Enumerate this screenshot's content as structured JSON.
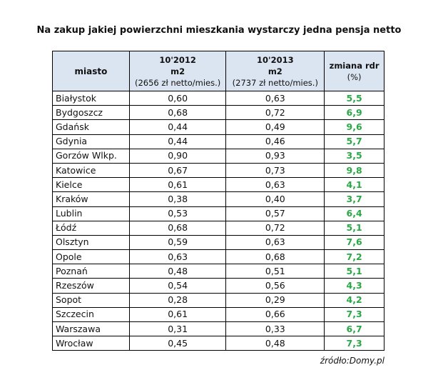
{
  "title": "Na zakup jakiej powierzchni mieszkania wystarczy jedna pensja netto",
  "header": {
    "city": "miasto",
    "y2012": {
      "line1": "10'2012",
      "line2": "m2",
      "line3": "(2656 zł netto/mies.)"
    },
    "y2013": {
      "line1": "10'2013",
      "line2": "m2",
      "line3": "(2737 zł netto/mies.)"
    },
    "change": {
      "line1": "zmiana rdr",
      "line2": "(%)"
    }
  },
  "rows": [
    {
      "city": "Białystok",
      "y2012": "0,60",
      "y2013": "0,63",
      "change": "5,5"
    },
    {
      "city": "Bydgoszcz",
      "y2012": "0,68",
      "y2013": "0,72",
      "change": "6,9"
    },
    {
      "city": "Gdańsk",
      "y2012": "0,44",
      "y2013": "0,49",
      "change": "9,6"
    },
    {
      "city": "Gdynia",
      "y2012": "0,44",
      "y2013": "0,46",
      "change": "5,7"
    },
    {
      "city": "Gorzów Wlkp.",
      "y2012": "0,90",
      "y2013": "0,93",
      "change": "3,5"
    },
    {
      "city": "Katowice",
      "y2012": "0,67",
      "y2013": "0,73",
      "change": "9,8"
    },
    {
      "city": "Kielce",
      "y2012": "0,61",
      "y2013": "0,63",
      "change": "4,1"
    },
    {
      "city": "Kraków",
      "y2012": "0,38",
      "y2013": "0,40",
      "change": "3,7"
    },
    {
      "city": "Lublin",
      "y2012": "0,53",
      "y2013": "0,57",
      "change": "6,4"
    },
    {
      "city": "Łódź",
      "y2012": "0,68",
      "y2013": "0,72",
      "change": "5,1"
    },
    {
      "city": "Olsztyn",
      "y2012": "0,59",
      "y2013": "0,63",
      "change": "7,6"
    },
    {
      "city": "Opole",
      "y2012": "0,63",
      "y2013": "0,68",
      "change": "7,2"
    },
    {
      "city": "Poznań",
      "y2012": "0,48",
      "y2013": "0,51",
      "change": "5,1"
    },
    {
      "city": "Rzeszów",
      "y2012": "0,54",
      "y2013": "0,56",
      "change": "4,3"
    },
    {
      "city": "Sopot",
      "y2012": "0,28",
      "y2013": "0,29",
      "change": "4,2"
    },
    {
      "city": "Szczecin",
      "y2012": "0,61",
      "y2013": "0,66",
      "change": "7,3"
    },
    {
      "city": "Warszawa",
      "y2012": "0,31",
      "y2013": "0,33",
      "change": "6,7"
    },
    {
      "city": "Wrocław",
      "y2012": "0,45",
      "y2013": "0,48",
      "change": "7,3"
    }
  ],
  "source": "źródło:Domy.pl",
  "colors": {
    "header_bg": "#dbe5f1",
    "change_text": "#2aa845"
  }
}
